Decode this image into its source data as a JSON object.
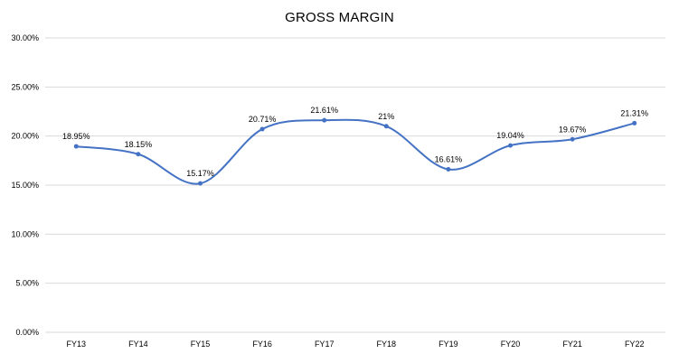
{
  "chart_data": {
    "type": "line",
    "title": "GROSS MARGIN",
    "categories": [
      "FY13",
      "FY14",
      "FY15",
      "FY16",
      "FY17",
      "FY18",
      "FY19",
      "FY20",
      "FY21",
      "FY22"
    ],
    "series": [
      {
        "values": [
          18.95,
          18.15,
          15.17,
          20.71,
          21.61,
          21.0,
          16.61,
          19.04,
          19.67,
          21.31
        ],
        "labels": [
          "18.95%",
          "18.15%",
          "15.17%",
          "20.71%",
          "21.61%",
          "21%",
          "16.61%",
          "19.04%",
          "19.67%",
          "21.31%"
        ],
        "color": "#4472C4"
      }
    ],
    "ylim": [
      0,
      30
    ],
    "yticks": [
      0,
      5,
      10,
      15,
      20,
      25,
      30
    ],
    "ytick_labels": [
      "0.00%",
      "5.00%",
      "10.00%",
      "15.00%",
      "20.00%",
      "25.00%",
      "30.00%"
    ],
    "xlabel": "",
    "ylabel": "",
    "grid": true,
    "gridline_color": "#d9d9d9",
    "smooth": true
  }
}
